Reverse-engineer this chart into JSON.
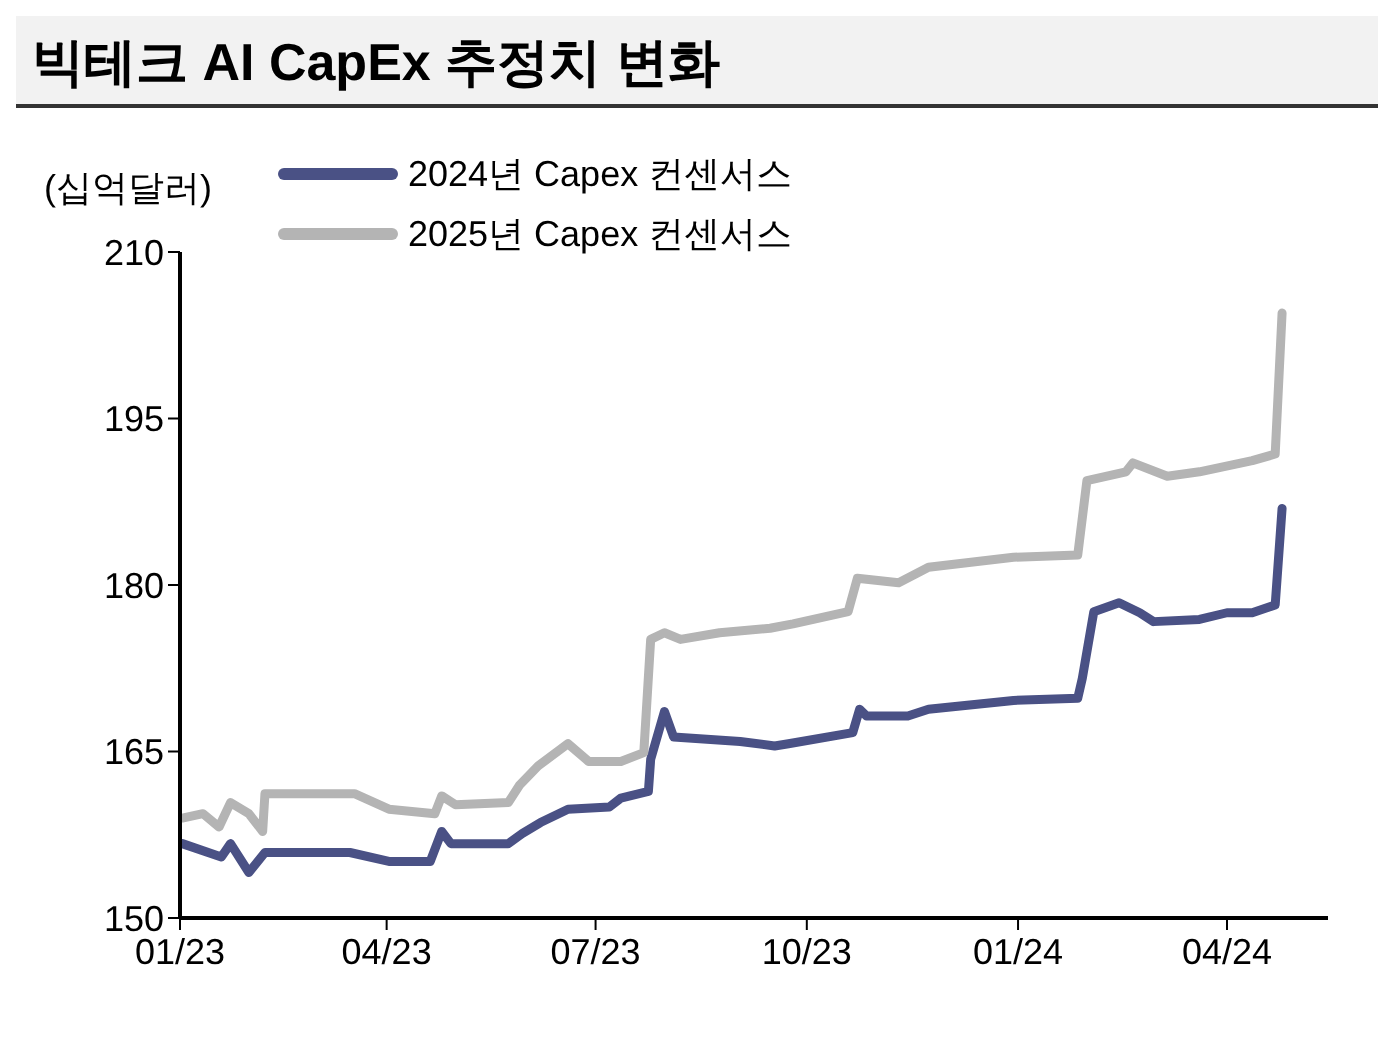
{
  "chart_data": {
    "type": "line",
    "title": "빅테크 AI CapEx 추정치 변화",
    "ylabel": "(십억달러)",
    "xlim": [
      "2023-01-01",
      "2024-05-15"
    ],
    "xticks": [
      {
        "value": "2023-01-01",
        "label": "01/23"
      },
      {
        "value": "2023-04-01",
        "label": "04/23"
      },
      {
        "value": "2023-07-01",
        "label": "07/23"
      },
      {
        "value": "2023-10-01",
        "label": "10/23"
      },
      {
        "value": "2024-01-01",
        "label": "01/24"
      },
      {
        "value": "2024-04-01",
        "label": "04/24"
      }
    ],
    "ylim": [
      150,
      210
    ],
    "yticks": [
      150,
      165,
      180,
      195,
      210
    ],
    "grid": false,
    "legend": "top left",
    "marker": "none",
    "line_style": "solid",
    "series": [
      {
        "name": "2024년 Capex 컨센서스",
        "color": "#4a5185",
        "x": [
          "2023-01-02",
          "2023-01-19",
          "2023-01-23",
          "2023-01-31",
          "2023-02-07",
          "2023-03-16",
          "2023-04-02",
          "2023-04-20",
          "2023-04-25",
          "2023-04-29",
          "2023-05-24",
          "2023-05-30",
          "2023-06-07",
          "2023-06-19",
          "2023-07-07",
          "2023-07-12",
          "2023-07-24",
          "2023-07-25",
          "2023-07-31",
          "2023-08-04",
          "2023-09-02",
          "2023-09-17",
          "2023-09-23",
          "2023-10-21",
          "2023-10-24",
          "2023-10-27",
          "2023-11-14",
          "2023-11-23",
          "2023-12-30",
          "2024-01-27",
          "2024-01-29",
          "2024-02-03",
          "2024-02-14",
          "2024-02-23",
          "2024-02-29",
          "2024-03-20",
          "2024-04-01",
          "2024-04-12",
          "2024-04-22",
          "2024-04-25"
        ],
        "values": [
          156.7,
          155.5,
          156.7,
          154.1,
          155.9,
          155.9,
          155.1,
          155.1,
          157.8,
          156.7,
          156.7,
          157.6,
          158.6,
          159.8,
          160,
          160.8,
          161.4,
          164.3,
          168.6,
          166.3,
          165.9,
          165.5,
          165.7,
          166.7,
          168.8,
          168.2,
          168.2,
          168.8,
          169.6,
          169.8,
          171.6,
          177.6,
          178.4,
          177.5,
          176.7,
          176.9,
          177.5,
          177.5,
          178.2,
          186.9
        ]
      },
      {
        "name": "2025년 Capex 컨센서스",
        "color": "#b4b4b4",
        "x": [
          "2023-01-02",
          "2023-01-11",
          "2023-01-18",
          "2023-01-23",
          "2023-01-31",
          "2023-02-06",
          "2023-02-07",
          "2023-03-18",
          "2023-04-02",
          "2023-04-22",
          "2023-04-25",
          "2023-05-01",
          "2023-05-24",
          "2023-05-29",
          "2023-06-06",
          "2023-06-19",
          "2023-06-28",
          "2023-07-12",
          "2023-07-22",
          "2023-07-25",
          "2023-07-31",
          "2023-08-07",
          "2023-08-24",
          "2023-09-15",
          "2023-09-25",
          "2023-10-19",
          "2023-10-23",
          "2023-11-10",
          "2023-11-23",
          "2023-12-30",
          "2024-01-27",
          "2024-01-31",
          "2024-02-17",
          "2024-02-20",
          "2024-03-06",
          "2024-03-20",
          "2024-04-12",
          "2024-04-22",
          "2024-04-25"
        ],
        "values": [
          159,
          159.4,
          158.2,
          160.4,
          159.4,
          157.8,
          161.2,
          161.2,
          159.8,
          159.4,
          161,
          160.2,
          160.4,
          162,
          163.7,
          165.7,
          164.1,
          164.1,
          164.9,
          175.1,
          175.7,
          175.1,
          175.7,
          176.1,
          176.5,
          177.6,
          180.6,
          180.2,
          181.6,
          182.5,
          182.7,
          189.4,
          190.2,
          191,
          189.8,
          190.2,
          191.2,
          191.8,
          204.5
        ]
      }
    ]
  }
}
